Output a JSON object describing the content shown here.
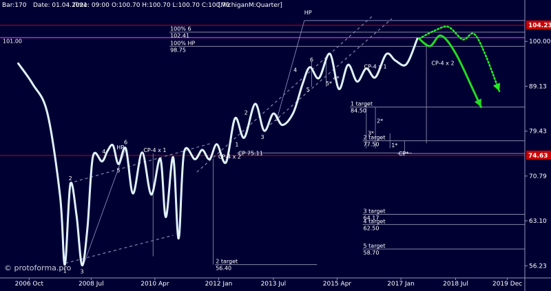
{
  "header": {
    "bar": "Bar:170",
    "date": "Date: 01.04.2021",
    "time": "Time: 09:00",
    "ohlc": "O:100.70 H:100.70 L:100.70 C:100.70",
    "symbol": "[MichiganM:Quarter]"
  },
  "watermark": "© protoforma.pro",
  "colors": {
    "background": "#000033",
    "price_line": "#e0f2ff",
    "projection_solid": "#22dd22",
    "projection_dotted": "#22ee22",
    "purple_level": "#b030b0",
    "red_label": "#cc0000",
    "grid": "#8888aa"
  },
  "chart_data": {
    "type": "line",
    "series": [
      {
        "values": [
          [
            2006.5,
            94.5
          ],
          [
            2006.9,
            89.6
          ],
          [
            2007.3,
            83.2
          ],
          [
            2007.65,
            67.2
          ],
          [
            2007.78,
            56.4
          ],
          [
            2007.93,
            69.3
          ],
          [
            2008.1,
            64.0
          ],
          [
            2008.25,
            56.3
          ],
          [
            2008.4,
            62.0
          ],
          [
            2008.55,
            74.4
          ],
          [
            2008.8,
            73.5
          ],
          [
            2008.95,
            75.5
          ],
          [
            2009.1,
            76.6
          ],
          [
            2009.25,
            73.0
          ],
          [
            2009.45,
            76.0
          ],
          [
            2009.65,
            67.7
          ],
          [
            2009.9,
            75.2
          ],
          [
            2010.15,
            67.5
          ],
          [
            2010.4,
            74.0
          ],
          [
            2010.55,
            63.7
          ],
          [
            2010.75,
            74.3
          ],
          [
            2010.9,
            60.3
          ],
          [
            2011.05,
            75.2
          ],
          [
            2011.35,
            73.9
          ],
          [
            2011.55,
            75.7
          ],
          [
            2011.75,
            73.9
          ],
          [
            2011.95,
            76.8
          ],
          [
            2012.2,
            73.3
          ],
          [
            2012.45,
            82.1
          ],
          [
            2012.7,
            78.1
          ],
          [
            2013.0,
            85.2
          ],
          [
            2013.25,
            79.5
          ],
          [
            2013.5,
            83.1
          ],
          [
            2013.75,
            80.7
          ],
          [
            2014.05,
            83.3
          ],
          [
            2014.3,
            89.6
          ],
          [
            2014.5,
            93.6
          ],
          [
            2014.75,
            91.0
          ],
          [
            2015.05,
            96.9
          ],
          [
            2015.3,
            88.5
          ],
          [
            2015.55,
            94.2
          ],
          [
            2015.8,
            90.2
          ],
          [
            2016.05,
            93.3
          ],
          [
            2016.3,
            91.2
          ],
          [
            2016.6,
            96.8
          ],
          [
            2016.85,
            95.2
          ],
          [
            2017.15,
            94.3
          ],
          [
            2017.45,
            100.7
          ]
        ]
      }
    ],
    "projections": [
      {
        "style": "solid",
        "values": [
          [
            2017.5,
            100.7
          ],
          [
            2017.8,
            98.8
          ],
          [
            2018.1,
            101.5
          ],
          [
            2018.5,
            97.0
          ],
          [
            2019.0,
            88.0
          ],
          [
            2019.2,
            84.5
          ]
        ]
      },
      {
        "style": "dotted",
        "values": [
          [
            2017.5,
            100.7
          ],
          [
            2017.9,
            102.7
          ],
          [
            2018.3,
            103.8
          ],
          [
            2018.7,
            100.5
          ],
          [
            2019.0,
            102.0
          ],
          [
            2019.3,
            97.0
          ],
          [
            2019.7,
            88.0
          ]
        ]
      }
    ],
    "x_ticks": [
      {
        "x": 2006.8,
        "label": "2006 Oct"
      },
      {
        "x": 2008.5,
        "label": "2008 Jul"
      },
      {
        "x": 2010.25,
        "label": "2010 Apr"
      },
      {
        "x": 2012.0,
        "label": "2012 Jan"
      },
      {
        "x": 2013.5,
        "label": "2013 Jul"
      },
      {
        "x": 2015.25,
        "label": "2015 Apr"
      },
      {
        "x": 2017.0,
        "label": "2017 Jan"
      },
      {
        "x": 2018.5,
        "label": "2018 Jul"
      },
      {
        "x": 2019.92,
        "label": "2019 Dec"
      }
    ],
    "y_ticks": [
      56.23,
      63.1,
      70.79,
      79.43,
      89.13,
      100.0
    ],
    "highlight_levels": [
      {
        "value": 104.23,
        "label": "104.23",
        "color": "#cc0000"
      },
      {
        "value": 74.63,
        "label": "74.63",
        "color": "#cc0000"
      }
    ],
    "y_scale": "log",
    "xlim": [
      2006.0,
      2020.4
    ],
    "ylim": [
      54.5,
      108.5
    ],
    "level_101": {
      "label": "101.00",
      "value": 101.0
    },
    "targets": [
      {
        "title": "100% 6",
        "value": "102.41",
        "y": 102.41,
        "x1": 2010.65,
        "x2": 2020.4
      },
      {
        "title": "100% HP",
        "value": "98.75",
        "y": 98.75,
        "x1": 2010.65,
        "x2": 2020.4
      },
      {
        "title": "1 target",
        "value": "84.50",
        "y": 84.5,
        "x1": 2015.6,
        "x2": 2020.4
      },
      {
        "title": "2 target",
        "value": "77.50",
        "y": 77.5,
        "x1": 2015.95,
        "x2": 2020.4
      },
      {
        "title": "2 target",
        "value": "56.40",
        "y": 56.4,
        "x1": 2011.9,
        "x2": 2014.7
      },
      {
        "title": "3 target",
        "value": "64.17",
        "y": 64.17,
        "x1": 2015.95,
        "x2": 2020.4
      },
      {
        "title": "4 target",
        "value": "62.50",
        "y": 62.5,
        "x1": 2015.95,
        "x2": 2020.4
      },
      {
        "title": "5 target",
        "value": "58.70",
        "y": 58.7,
        "x1": 2015.95,
        "x2": 2020.4
      }
    ],
    "cp_lines": [
      {
        "label": "CP  75.11",
        "y": 75.11,
        "x1": 2012.5,
        "x2": 2017.3
      },
      {
        "label": "CP*",
        "y": 75.0,
        "x1": 2016.9,
        "x2": 2020.4
      }
    ],
    "points": [
      {
        "label": "1",
        "x": 2007.78,
        "y": 56.4,
        "pos": "below"
      },
      {
        "label": "2",
        "x": 2007.93,
        "y": 69.3,
        "pos": "above"
      },
      {
        "label": "3",
        "x": 2008.25,
        "y": 56.3,
        "pos": "below"
      },
      {
        "label": "4",
        "x": 2008.85,
        "y": 74.2,
        "pos": "above"
      },
      {
        "label": "5",
        "x": 2009.25,
        "y": 73.0,
        "pos": "below"
      },
      {
        "label": "6",
        "x": 2009.45,
        "y": 76.0,
        "pos": "above"
      },
      {
        "label": "HP",
        "x": 2009.3,
        "y": 75.0,
        "pos": "above"
      },
      {
        "label": "CP-4 x 1",
        "x": 2010.25,
        "y": 74.5,
        "pos": "above"
      },
      {
        "label": "CP-4 x 2",
        "x": 2011.95,
        "y": 74.4,
        "pos": "right"
      },
      {
        "label": "1",
        "x": 2012.5,
        "y": 78.0,
        "pos": "below"
      },
      {
        "label": "2",
        "x": 2012.75,
        "y": 82.0,
        "pos": "above"
      },
      {
        "label": "3",
        "x": 2013.2,
        "y": 79.5,
        "pos": "below"
      },
      {
        "label": "3'",
        "x": 2013.5,
        "y": 82.0,
        "pos": "right"
      },
      {
        "label": "4",
        "x": 2014.1,
        "y": 91.5,
        "pos": "above"
      },
      {
        "label": "5",
        "x": 2014.45,
        "y": 89.8,
        "pos": "below"
      },
      {
        "label": "6",
        "x": 2014.55,
        "y": 94.0,
        "pos": "above"
      },
      {
        "label": "5*",
        "x": 2014.9,
        "y": 89.8,
        "pos": "right"
      },
      {
        "label": "4*",
        "x": 2015.1,
        "y": 91.0,
        "pos": "right"
      },
      {
        "label": "HP",
        "x": 2014.45,
        "y": 106.0,
        "pos": "above"
      },
      {
        "label": "CP-4 x 1",
        "x": 2015.95,
        "y": 93.8,
        "pos": "right"
      },
      {
        "label": "CP-4 x 2",
        "x": 2017.8,
        "y": 94.6,
        "pos": "right"
      },
      {
        "label": "2*",
        "x": 2016.3,
        "y": 81.6,
        "pos": "right"
      },
      {
        "label": "3*",
        "x": 2016.05,
        "y": 79.0,
        "pos": "right"
      },
      {
        "label": "1*",
        "x": 2016.7,
        "y": 76.6,
        "pos": "right"
      }
    ],
    "dashed_lines": [
      {
        "values": [
          [
            2007.9,
            69.5
          ],
          [
            2011.8,
            77.0
          ]
        ]
      },
      {
        "values": [
          [
            2007.8,
            56.6
          ],
          [
            2010.75,
            60.8
          ]
        ]
      },
      {
        "values": [
          [
            2011.4,
            71.5
          ],
          [
            2016.25,
            107.0
          ]
        ]
      },
      {
        "values": [
          [
            2013.3,
            80.0
          ],
          [
            2016.75,
            106.0
          ]
        ]
      }
    ],
    "thin_lines": [
      {
        "values": [
          [
            2008.3,
            56.5
          ],
          [
            2009.45,
            76.0
          ]
        ]
      },
      {
        "values": [
          [
            2013.6,
            82.0
          ],
          [
            2014.35,
            105.5
          ]
        ]
      },
      {
        "values": [
          [
            2014.35,
            105.5
          ],
          [
            2020.4,
            105.5
          ]
        ]
      }
    ],
    "vertical_lines": [
      {
        "x": 2010.2,
        "y1": 57.6,
        "y2": 75.0
      },
      {
        "x": 2011.85,
        "y1": 56.4,
        "y2": 74.0
      },
      {
        "x": 2014.55,
        "y1": 89.0,
        "y2": 95.0
      },
      {
        "x": 2014.95,
        "y1": 89.0,
        "y2": 95.0
      },
      {
        "x": 2016.05,
        "y1": 76.0,
        "y2": 85.5
      },
      {
        "x": 2016.3,
        "y1": 76.0,
        "y2": 84.5
      },
      {
        "x": 2016.7,
        "y1": 76.0,
        "y2": 79.0
      },
      {
        "x": 2017.1,
        "y1": 74.5,
        "y2": 77.5
      },
      {
        "x": 2017.7,
        "y1": 77.0,
        "y2": 99.5
      }
    ]
  }
}
